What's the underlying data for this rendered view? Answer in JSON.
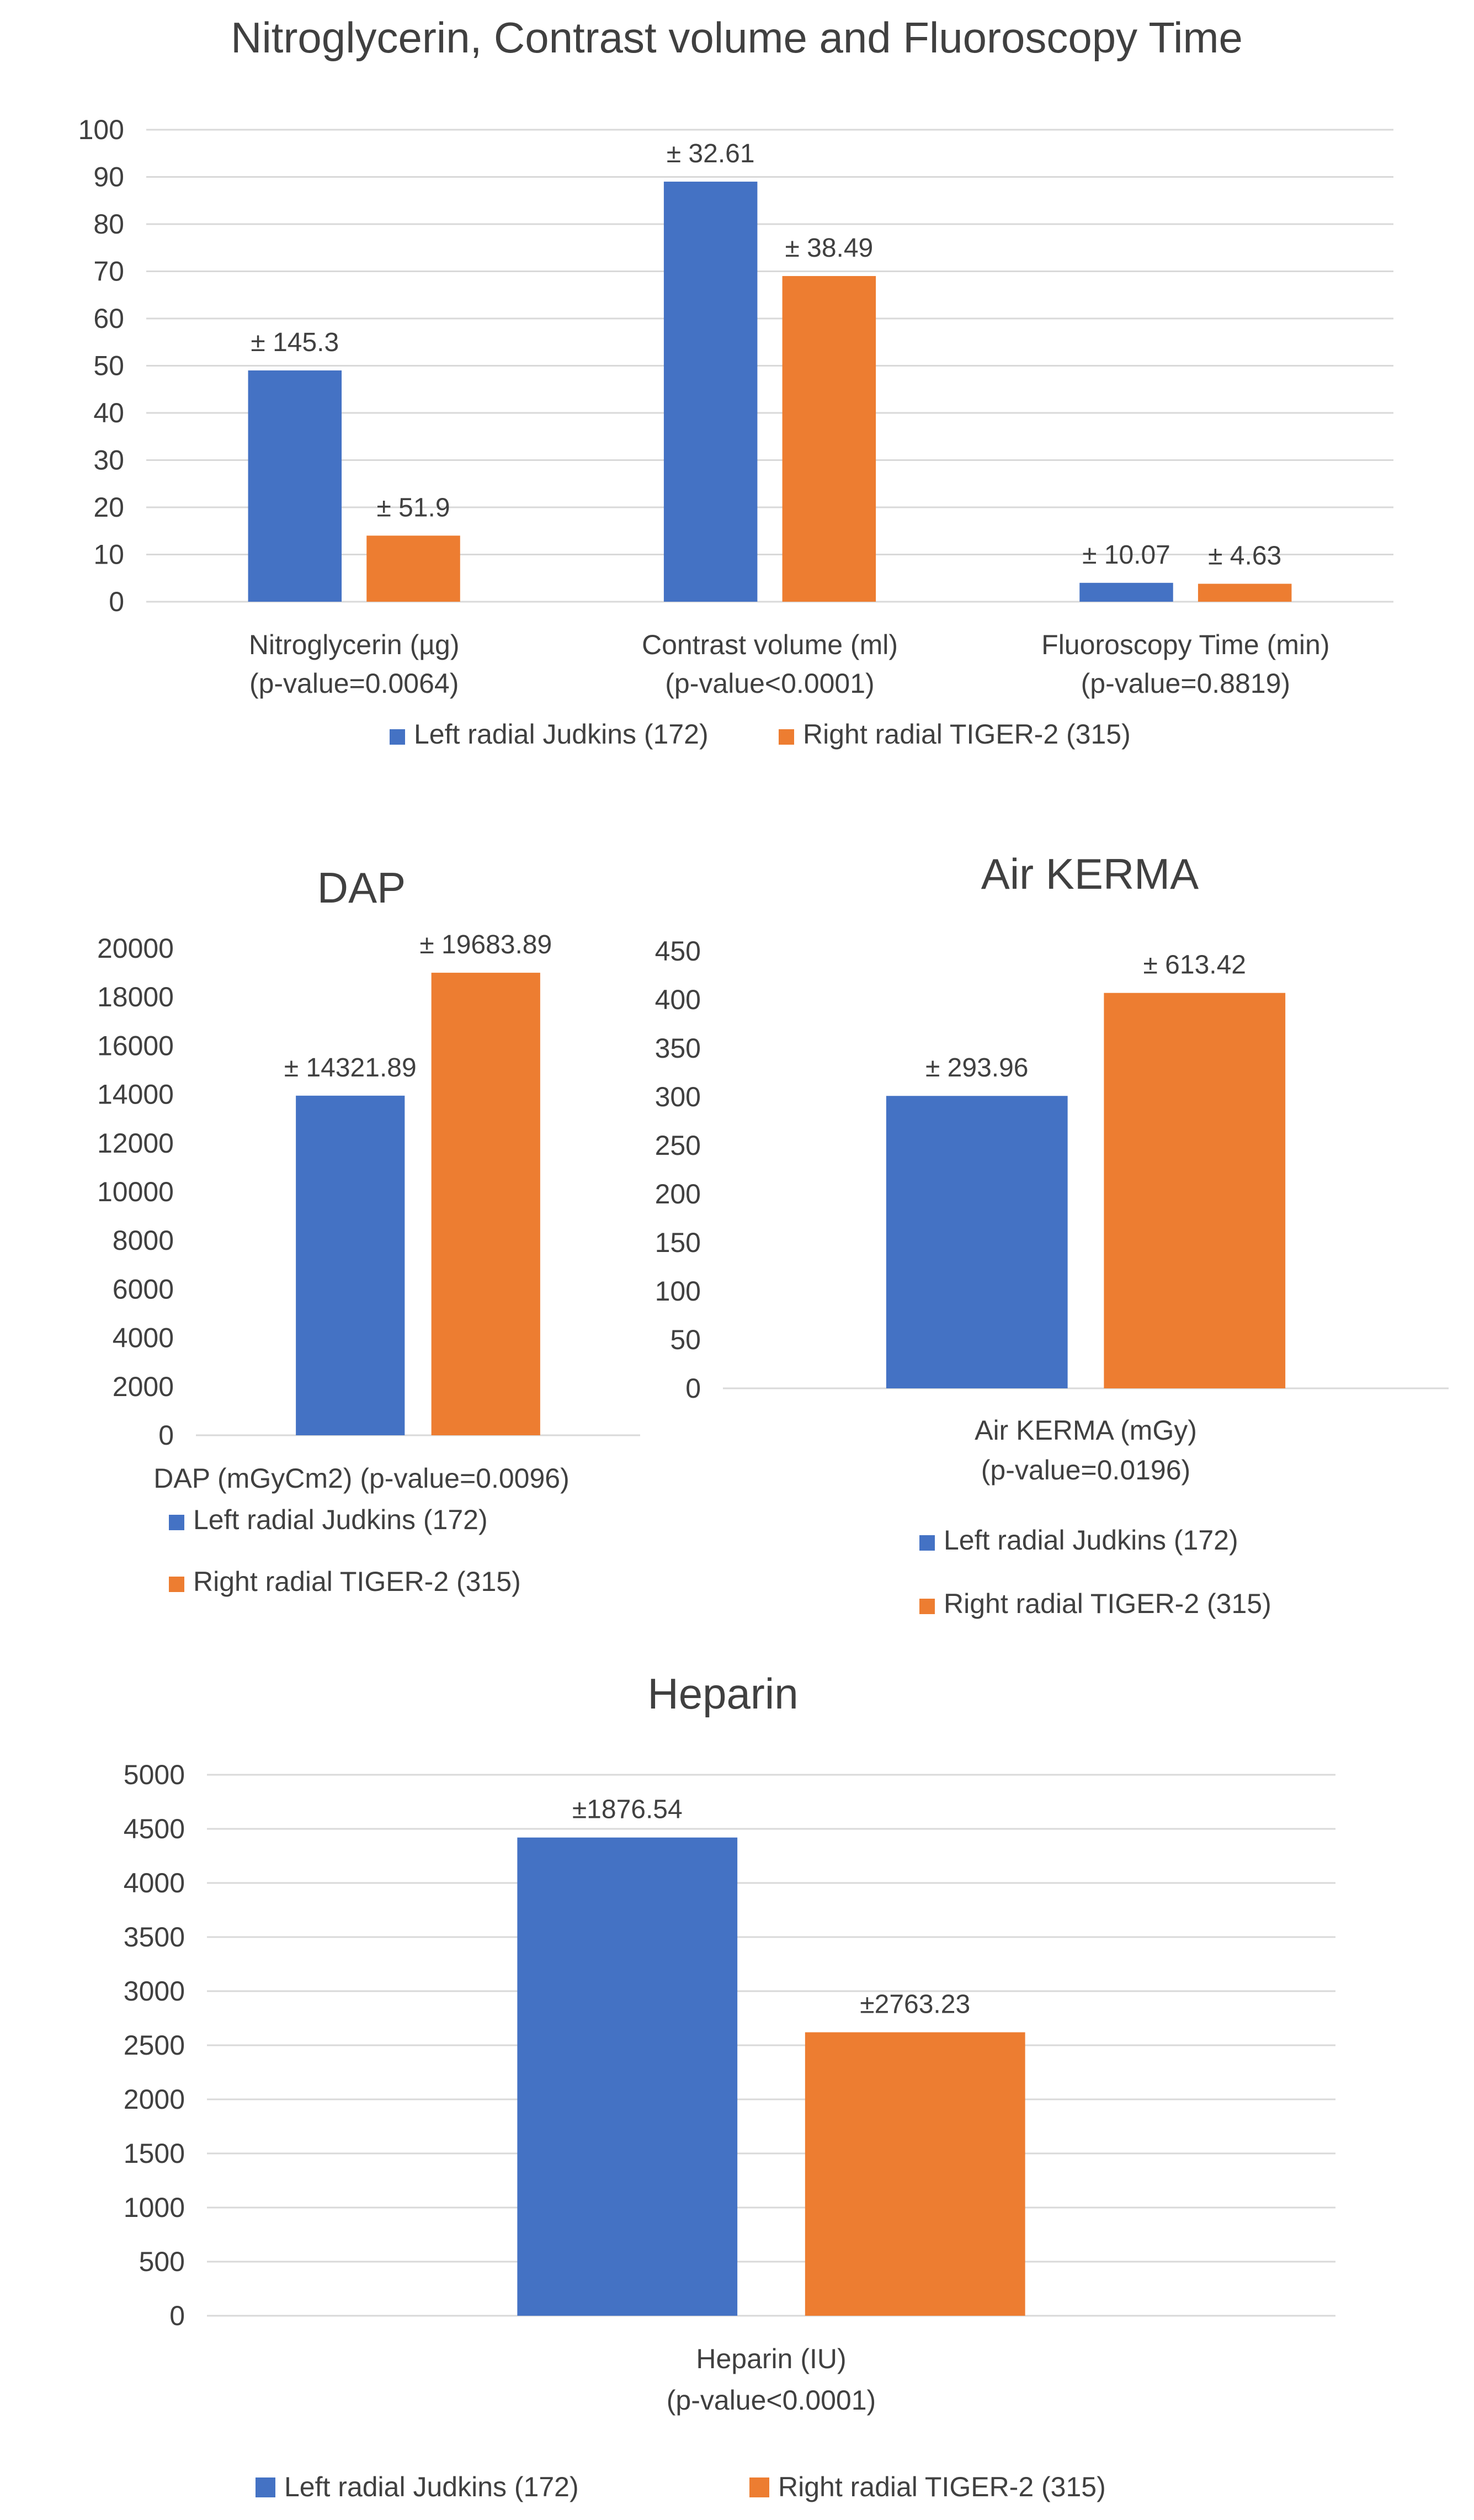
{
  "colors": {
    "series1": "#4472c4",
    "series2": "#ed7d31",
    "text": "#404040",
    "grid": "#d9d9d9"
  },
  "chart_data": [
    {
      "id": "nitro",
      "type": "bar",
      "title": "Nitroglycerin, Contrast volume and Fluoroscopy Time",
      "categories": [
        [
          "Nitroglycerin (µg)",
          "(p-value=0.0064)"
        ],
        [
          "Contrast volume (ml)",
          "(p-value<0.0001)"
        ],
        [
          "Fluoroscopy Time (min)",
          "(p-value=0.8819)"
        ]
      ],
      "series": [
        {
          "name": "Left radial Judkins (172)",
          "values": [
            49,
            89,
            4
          ],
          "labels": [
            "± 145.3",
            "± 32.61",
            "± 10.07"
          ]
        },
        {
          "name": "Right radial TIGER-2 (315)",
          "values": [
            14,
            69,
            3.8
          ],
          "labels": [
            "± 51.9",
            "± 38.49",
            "± 4.63"
          ]
        }
      ],
      "ylim": [
        0,
        100
      ],
      "yticks": [
        0,
        10,
        20,
        30,
        40,
        50,
        60,
        70,
        80,
        90,
        100
      ],
      "xlabel": "",
      "ylabel": "",
      "grid": true,
      "legend": "bottom"
    },
    {
      "id": "dap",
      "type": "bar",
      "title": "DAP",
      "categories": [
        [
          "DAP (mGyCm2) (p-value=0.0096)"
        ]
      ],
      "series": [
        {
          "name": "Left radial Judkins (172)",
          "values": [
            13950
          ],
          "labels": [
            "± 14321.89"
          ]
        },
        {
          "name": "Right radial TIGER-2 (315)",
          "values": [
            19000
          ],
          "labels": [
            "± 19683.89"
          ]
        }
      ],
      "ylim": [
        0,
        20000
      ],
      "yticks": [
        0,
        2000,
        4000,
        6000,
        8000,
        10000,
        12000,
        14000,
        16000,
        18000,
        20000
      ],
      "xlabel": "",
      "ylabel": "",
      "grid": false,
      "legend": "bottom-left"
    },
    {
      "id": "kerma",
      "type": "bar",
      "title": "Air KERMA",
      "categories": [
        [
          "Air KERMA (mGy)",
          "(p-value=0.0196)"
        ]
      ],
      "series": [
        {
          "name": "Left radial Judkins (172)",
          "values": [
            301
          ],
          "labels": [
            "± 293.96"
          ]
        },
        {
          "name": "Right radial TIGER-2 (315)",
          "values": [
            407
          ],
          "labels": [
            "± 613.42"
          ]
        }
      ],
      "ylim": [
        0,
        450
      ],
      "yticks": [
        0,
        50,
        100,
        150,
        200,
        250,
        300,
        350,
        400,
        450
      ],
      "xlabel": "",
      "ylabel": "",
      "grid": false,
      "legend": "bottom"
    },
    {
      "id": "heparin",
      "type": "bar",
      "title": "Heparin",
      "categories": [
        [
          "Heparin (IU)",
          "(p-value<0.0001)"
        ]
      ],
      "series": [
        {
          "name": "Left radial Judkins (172)",
          "values": [
            4420
          ],
          "labels": [
            "±1876.54"
          ]
        },
        {
          "name": "Right radial TIGER-2 (315)",
          "values": [
            2620
          ],
          "labels": [
            "±2763.23"
          ]
        }
      ],
      "ylim": [
        0,
        5000
      ],
      "yticks": [
        0,
        500,
        1000,
        1500,
        2000,
        2500,
        3000,
        3500,
        4000,
        4500,
        5000
      ],
      "xlabel": "",
      "ylabel": "",
      "grid": true,
      "legend": "bottom"
    }
  ]
}
